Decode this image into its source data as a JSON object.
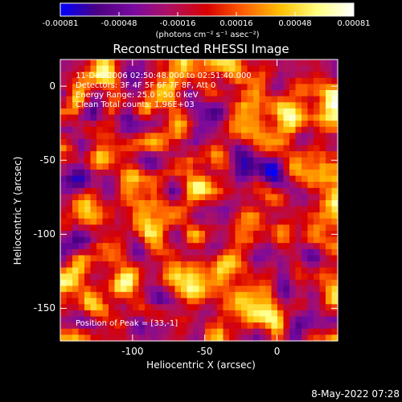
{
  "chart_data": {
    "type": "heatmap",
    "title": "Reconstructed RHESSI Image",
    "xlabel": "Heliocentric X (arcsec)",
    "ylabel": "Heliocentric Y (arcsec)",
    "xlim": [
      -150,
      42
    ],
    "ylim": [
      -172,
      18
    ],
    "x_ticks": [
      -100,
      -50,
      0
    ],
    "y_ticks": [
      0,
      -50,
      -100,
      -150
    ],
    "colorbar": {
      "min": -0.00081,
      "max": 0.00081,
      "ticks": [
        "-0.00081",
        "-0.00048",
        "-0.00016",
        "0.00016",
        "0.00048",
        "0.00081"
      ],
      "units_label": "(photons cm⁻² s⁻¹ asec⁻²)"
    },
    "annotations": [
      "11-Dec-2006 02:50:48.000 to 02:51:40.000",
      "Detectors: 3F 4F 5F 6F 7F 8F, Att 0",
      "Energy Range: 25.0 - 50.0 keV",
      "Clean     Total counts: 1.96E+03"
    ],
    "peak_label": "Position of Peak = [33,-1]",
    "peak_position": [
      33,
      -1
    ],
    "colors": {
      "scale": [
        "#0000ff",
        "#4b0082",
        "#7a0aa0",
        "#b01060",
        "#d80000",
        "#ff6000",
        "#ffc000",
        "#ffff80",
        "#ffffff"
      ]
    }
  },
  "footer": {
    "timestamp": "8-May-2022 07:28"
  }
}
